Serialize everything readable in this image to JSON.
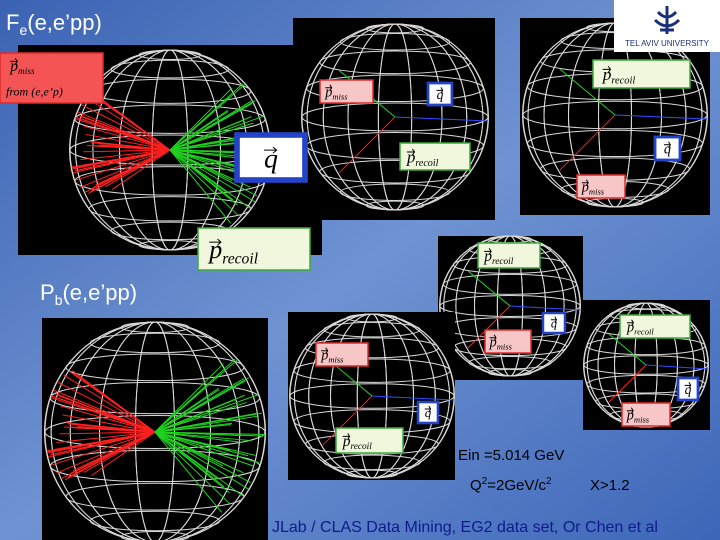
{
  "header": {
    "main": "F",
    "sub": "e",
    "rest": "(e,e’pp)"
  },
  "logo": "TEL AVIV UNIVERSITY",
  "pb_title": {
    "main": "P",
    "sub": "b",
    "rest": "(e,e’pp)"
  },
  "labels": [
    {
      "symbol": "p",
      "subscript": "miss",
      "note": "from (e,e’p)"
    },
    {
      "symbol": "q"
    },
    {
      "symbol": "p",
      "subscript": "recoil"
    },
    {
      "symbol": "p",
      "subscript": "miss"
    },
    {
      "symbol": "q"
    },
    {
      "symbol": "p",
      "subscript": "recoil"
    },
    {
      "symbol": "p",
      "subscript": "recoil"
    },
    {
      "symbol": "q"
    },
    {
      "symbol": "p",
      "subscript": "miss"
    },
    {
      "symbol": "p",
      "subscript": "recoil"
    },
    {
      "symbol": "q"
    },
    {
      "symbol": "p",
      "subscript": "miss"
    },
    {
      "symbol": "p",
      "subscript": "recoil"
    },
    {
      "symbol": "q"
    },
    {
      "symbol": "p",
      "subscript": "miss"
    },
    {
      "symbol": "p",
      "subscript": "miss"
    },
    {
      "symbol": "q"
    },
    {
      "symbol": "p",
      "subscript": "recoil"
    }
  ],
  "notes": {
    "energy": "Ein =5.014 GeV",
    "q2": {
      "q": "Q",
      "exp1": "2",
      "mid": "=2GeV/c",
      "exp2": "2"
    },
    "x": "X>1.2"
  },
  "footer": "JLab / CLAS Data Mining,   EG2 data set,  Or Chen et al"
}
